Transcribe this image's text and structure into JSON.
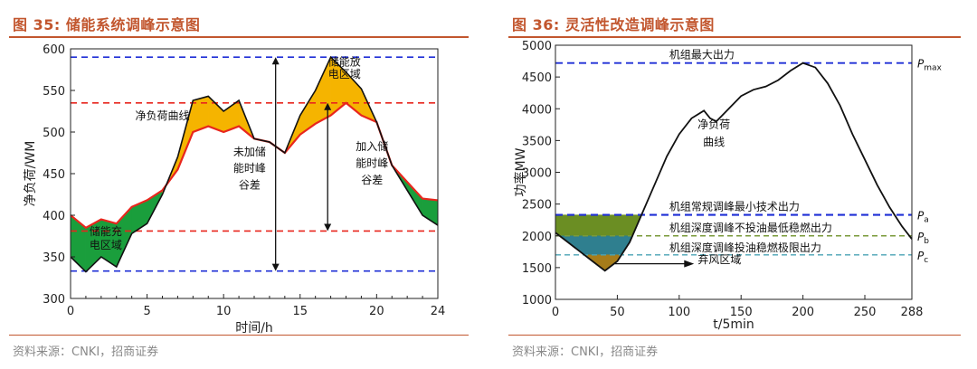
{
  "left": {
    "fig_label": "图",
    "fig_number": "35:",
    "title": "储能系统调峰示意图",
    "source": "资料来源：CNKI，招商证券"
  },
  "right": {
    "fig_label": "图",
    "fig_number": "36:",
    "title": "灵活性改造调峰示意图",
    "source": "资料来源：CNKI，招商证券"
  },
  "colors": {
    "accent": "#c2562e",
    "net_load": "#111111",
    "regulated": "#e8261d",
    "charge_fill": "#1a9e3c",
    "discharge_fill": "#f5b400",
    "dashed_blue": "#1f2fd6",
    "dashed_red": "#e8261d",
    "olive_fill": "#6b8e23",
    "teal_fill": "#2f7f8f",
    "brown_fill": "#a67c1a",
    "olive_line": "#7a9a3a",
    "teal_line": "#4aa3b5"
  },
  "chart_data": [
    {
      "type": "line",
      "title": "储能系统调峰示意图",
      "xlabel": "时间/h",
      "ylabel": "净负荷/WM",
      "xlim": [
        0,
        24
      ],
      "ylim": [
        300,
        600
      ],
      "xticks": [
        0,
        5,
        10,
        15,
        20,
        24
      ],
      "yticks": [
        300,
        350,
        400,
        450,
        500,
        550,
        600
      ],
      "series": [
        {
          "name": "净负荷曲线",
          "x": [
            0,
            1,
            2,
            3,
            4,
            5,
            6,
            7,
            8,
            9,
            10,
            11,
            12,
            13,
            14,
            15,
            16,
            17,
            18,
            19,
            20,
            21,
            22,
            23,
            24
          ],
          "values": [
            350,
            332,
            350,
            338,
            378,
            390,
            425,
            470,
            538,
            543,
            525,
            538,
            492,
            488,
            475,
            520,
            550,
            590,
            572,
            552,
            512,
            460,
            430,
            400,
            388
          ]
        },
        {
          "name": "regulated",
          "x": [
            0,
            1,
            2,
            3,
            4,
            5,
            6,
            7,
            8,
            9,
            10,
            11,
            12,
            13,
            14,
            15,
            16,
            17,
            18,
            19,
            20,
            21,
            22,
            23,
            24
          ],
          "values": [
            400,
            385,
            395,
            390,
            410,
            418,
            430,
            455,
            500,
            507,
            500,
            507,
            492,
            488,
            475,
            497,
            510,
            520,
            535,
            520,
            512,
            460,
            440,
            420,
            418
          ]
        }
      ],
      "reference_lines": [
        {
          "y": 590,
          "color": "blue"
        },
        {
          "y": 535,
          "color": "red"
        },
        {
          "y": 381,
          "color": "red"
        },
        {
          "y": 333,
          "color": "blue"
        }
      ],
      "annotations": [
        {
          "text": "净负荷曲线",
          "x": 6,
          "y": 515
        },
        {
          "text": "储能放",
          "x": 17.9,
          "y": 580
        },
        {
          "text": "电区域",
          "x": 17.9,
          "y": 565
        },
        {
          "text": "储能充",
          "x": 2.3,
          "y": 376
        },
        {
          "text": "电区域",
          "x": 2.3,
          "y": 360
        },
        {
          "text": "未加储",
          "x": 11.7,
          "y": 472
        },
        {
          "text": "能时峰",
          "x": 11.7,
          "y": 452
        },
        {
          "text": "谷差",
          "x": 11.7,
          "y": 432
        },
        {
          "text": "加入储",
          "x": 19.7,
          "y": 478
        },
        {
          "text": "能时峰",
          "x": 19.7,
          "y": 458
        },
        {
          "text": "谷差",
          "x": 19.7,
          "y": 438
        }
      ]
    },
    {
      "type": "line",
      "title": "灵活性改造调峰示意图",
      "xlabel": "t/5min",
      "ylabel": "功率MW",
      "xlim": [
        0,
        288
      ],
      "ylim": [
        1000,
        5000
      ],
      "xticks": [
        0,
        50,
        100,
        150,
        200,
        250,
        288
      ],
      "yticks": [
        1000,
        1500,
        2000,
        2500,
        3000,
        3500,
        4000,
        4500,
        5000
      ],
      "series": [
        {
          "name": "净负荷曲线",
          "x": [
            0,
            10,
            20,
            30,
            40,
            50,
            60,
            70,
            80,
            90,
            100,
            110,
            120,
            125,
            130,
            140,
            150,
            160,
            170,
            180,
            190,
            200,
            210,
            220,
            230,
            240,
            250,
            260,
            270,
            280,
            288
          ],
          "values": [
            2050,
            1900,
            1750,
            1600,
            1450,
            1600,
            1900,
            2350,
            2800,
            3250,
            3600,
            3850,
            3970,
            3850,
            3800,
            4000,
            4200,
            4300,
            4350,
            4450,
            4600,
            4720,
            4650,
            4400,
            4050,
            3600,
            3200,
            2800,
            2450,
            2150,
            1950
          ]
        }
      ],
      "reference_lines": [
        {
          "y": 4720,
          "label": "机组最大出力",
          "right_label": "P",
          "right_sub": "max"
        },
        {
          "y": 2330,
          "label": "机组常规调峰最小技术出力",
          "right_label": "P",
          "right_sub": "a"
        },
        {
          "y": 2000,
          "label": "机组深度调峰不投油最低稳燃出力",
          "right_label": "P",
          "right_sub": "b"
        },
        {
          "y": 1700,
          "label": "机组深度调峰投油稳燃极限出力",
          "right_label": "P",
          "right_sub": "c"
        }
      ],
      "annotations": [
        {
          "text": "净负荷",
          "x": 128,
          "y": 3700
        },
        {
          "text": "曲线",
          "x": 128,
          "y": 3420
        },
        {
          "text": "弃风区域",
          "x": 115,
          "y": 1570
        }
      ]
    }
  ]
}
